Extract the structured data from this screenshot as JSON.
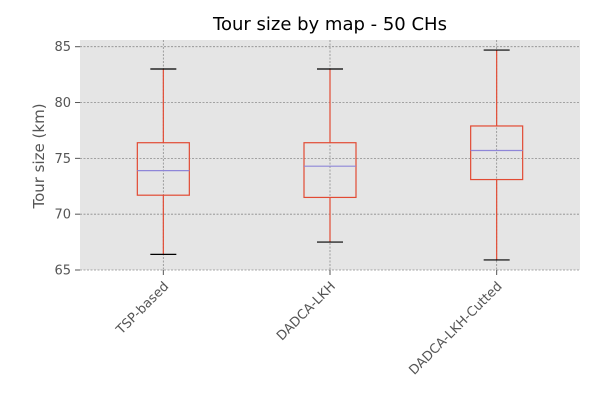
{
  "chart_data": {
    "type": "box",
    "title": "Tour size by map - 50 CHs",
    "xlabel": "",
    "ylabel": "Tour size (km)",
    "ylim": [
      65,
      85.6
    ],
    "yticks": [
      65,
      70,
      75,
      80,
      85
    ],
    "grid": true,
    "categories": [
      "TSP-based",
      "DADCA-LKH",
      "DADCA-LKH-Cutted"
    ],
    "boxes": [
      {
        "category": "TSP-based",
        "whisker_low": 66.4,
        "q1": 71.7,
        "median": 73.9,
        "q3": 76.4,
        "whisker_high": 83.0
      },
      {
        "category": "DADCA-LKH",
        "whisker_low": 67.5,
        "q1": 71.5,
        "median": 74.3,
        "q3": 76.4,
        "whisker_high": 83.0
      },
      {
        "category": "DADCA-LKH-Cutted",
        "whisker_low": 65.9,
        "q1": 73.1,
        "median": 75.7,
        "q3": 77.9,
        "whisker_high": 84.7
      }
    ],
    "colors": {
      "plot_background": "#e5e5e5",
      "grid": "#8c8c8c",
      "box": "#e24a33",
      "median": "#8e86d8",
      "caps": "#000000",
      "axis_text": "#555555"
    }
  }
}
